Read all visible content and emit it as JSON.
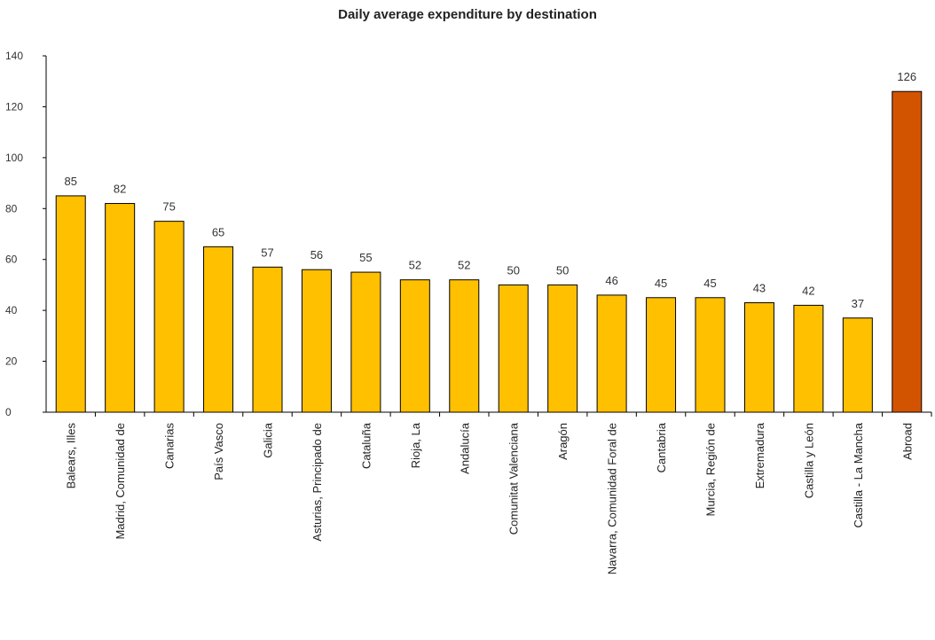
{
  "chart_data": {
    "type": "bar",
    "title": "Daily average expenditure by destination",
    "xlabel": "",
    "ylabel": "",
    "ylim": [
      0,
      140
    ],
    "yticks": [
      0,
      20,
      40,
      60,
      80,
      100,
      120,
      140
    ],
    "grid": false,
    "legend": "none",
    "categories": [
      "Balears, Illes",
      "Madrid, Comunidad de",
      "Canarias",
      "País Vasco",
      "Galicia",
      "Asturias, Principado de",
      "Cataluña",
      "Rioja, La",
      "Andalucía",
      "Comunitat Valenciana",
      "Aragón",
      "Navarra, Comunidad Foral de",
      "Cantabria",
      "Murcia, Región de",
      "Extremadura",
      "Castilla y León",
      "Castilla - La Mancha",
      "Abroad"
    ],
    "values": [
      85,
      82,
      75,
      65,
      57,
      56,
      55,
      52,
      52,
      50,
      50,
      46,
      45,
      45,
      43,
      42,
      37,
      126
    ],
    "colors": {
      "domestic": "#FFC000",
      "abroad": "#D35400",
      "outline": "#000000"
    }
  }
}
